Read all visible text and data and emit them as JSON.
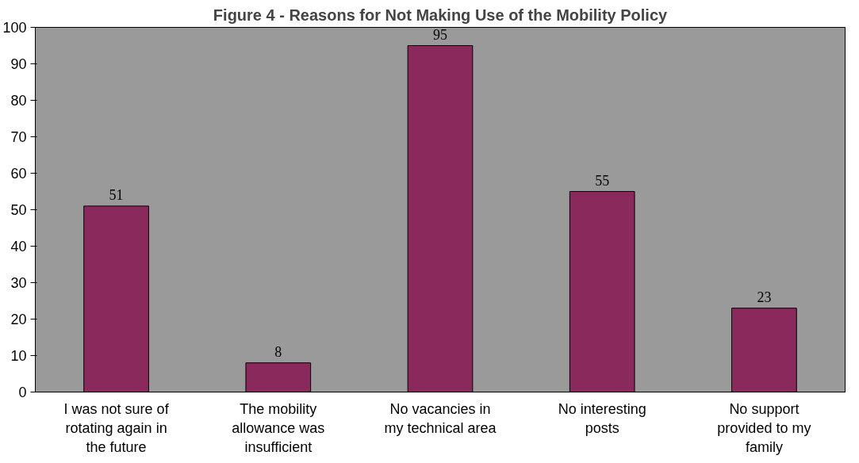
{
  "chart_data": {
    "type": "bar",
    "title": "Figure 4 - Reasons for Not Making Use of the Mobility Policy",
    "categories": [
      "I was not sure of rotating again in the future",
      "The mobility allowance was insufficient",
      "No vacancies in my technical area",
      "No interesting posts",
      "No support provided to my family"
    ],
    "values": [
      51,
      8,
      95,
      55,
      23
    ],
    "color": "#8a2a5c",
    "ylim": [
      0,
      100
    ],
    "yticks": [
      0,
      10,
      20,
      30,
      40,
      50,
      60,
      70,
      80,
      90,
      100
    ],
    "grid": false,
    "data_labels": true
  }
}
